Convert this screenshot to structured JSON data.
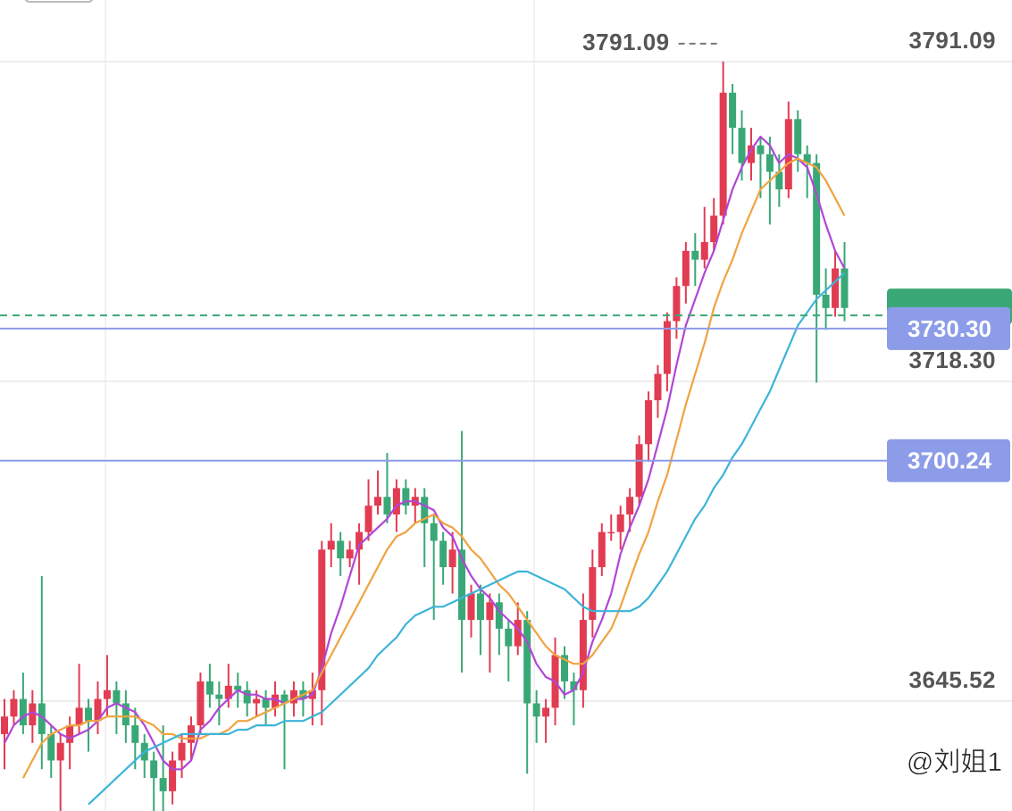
{
  "chart_data": {
    "type": "candlestick",
    "candles": {
      "up_color": "#e23c52",
      "down_color": "#3aa876",
      "values": [
        [
          3638,
          3646,
          3630,
          3642
        ],
        [
          3642,
          3648,
          3640,
          3646
        ],
        [
          3646,
          3652,
          3638,
          3640
        ],
        [
          3640,
          3648,
          3636,
          3645
        ],
        [
          3645,
          3674,
          3630,
          3638
        ],
        [
          3638,
          3640,
          3628,
          3632
        ],
        [
          3632,
          3638,
          3620,
          3636
        ],
        [
          3636,
          3642,
          3630,
          3640
        ],
        [
          3640,
          3654,
          3638,
          3644
        ],
        [
          3644,
          3646,
          3634,
          3641
        ],
        [
          3641,
          3650,
          3638,
          3646
        ],
        [
          3646,
          3656,
          3642,
          3648
        ],
        [
          3648,
          3650,
          3638,
          3645
        ],
        [
          3645,
          3648,
          3636,
          3640
        ],
        [
          3640,
          3644,
          3630,
          3636
        ],
        [
          3636,
          3638,
          3628,
          3632
        ],
        [
          3632,
          3634,
          3620,
          3628
        ],
        [
          3628,
          3640,
          3620,
          3625
        ],
        [
          3625,
          3634,
          3622,
          3632
        ],
        [
          3632,
          3638,
          3628,
          3636
        ],
        [
          3636,
          3642,
          3632,
          3640
        ],
        [
          3640,
          3652,
          3638,
          3650
        ],
        [
          3650,
          3654,
          3644,
          3647
        ],
        [
          3647,
          3650,
          3640,
          3646
        ],
        [
          3646,
          3654,
          3644,
          3649
        ],
        [
          3649,
          3652,
          3644,
          3648
        ],
        [
          3648,
          3650,
          3642,
          3645
        ],
        [
          3645,
          3648,
          3642,
          3646
        ],
        [
          3646,
          3648,
          3640,
          3644
        ],
        [
          3644,
          3650,
          3642,
          3647
        ],
        [
          3647,
          3648,
          3630,
          3645
        ],
        [
          3645,
          3650,
          3642,
          3648
        ],
        [
          3648,
          3650,
          3642,
          3646
        ],
        [
          3646,
          3652,
          3640,
          3648
        ],
        [
          3648,
          3682,
          3640,
          3680
        ],
        [
          3680,
          3686,
          3676,
          3682
        ],
        [
          3682,
          3684,
          3674,
          3678
        ],
        [
          3678,
          3682,
          3676,
          3680
        ],
        [
          3680,
          3686,
          3672,
          3684
        ],
        [
          3684,
          3696,
          3682,
          3690
        ],
        [
          3690,
          3698,
          3688,
          3692
        ],
        [
          3692,
          3702,
          3686,
          3688
        ],
        [
          3688,
          3696,
          3684,
          3694
        ],
        [
          3694,
          3696,
          3688,
          3690
        ],
        [
          3690,
          3694,
          3686,
          3692
        ],
        [
          3692,
          3694,
          3676,
          3686
        ],
        [
          3686,
          3688,
          3664,
          3682
        ],
        [
          3682,
          3684,
          3672,
          3676
        ],
        [
          3676,
          3684,
          3670,
          3680
        ],
        [
          3680,
          3707,
          3652,
          3664
        ],
        [
          3664,
          3672,
          3660,
          3670
        ],
        [
          3670,
          3672,
          3656,
          3664
        ],
        [
          3664,
          3670,
          3652,
          3668
        ],
        [
          3668,
          3670,
          3656,
          3662
        ],
        [
          3662,
          3664,
          3650,
          3658
        ],
        [
          3658,
          3668,
          3656,
          3664
        ],
        [
          3664,
          3666,
          3629,
          3645
        ],
        [
          3645,
          3648,
          3636,
          3642
        ],
        [
          3642,
          3646,
          3636,
          3644
        ],
        [
          3644,
          3660,
          3640,
          3656
        ],
        [
          3656,
          3658,
          3646,
          3650
        ],
        [
          3650,
          3652,
          3640,
          3648
        ],
        [
          3648,
          3670,
          3644,
          3664
        ],
        [
          3664,
          3680,
          3660,
          3676
        ],
        [
          3676,
          3686,
          3674,
          3684
        ],
        [
          3684,
          3688,
          3682,
          3684
        ],
        [
          3684,
          3690,
          3680,
          3688
        ],
        [
          3688,
          3694,
          3684,
          3692
        ],
        [
          3692,
          3706,
          3690,
          3704
        ],
        [
          3704,
          3716,
          3700,
          3714
        ],
        [
          3714,
          3722,
          3710,
          3720
        ],
        [
          3720,
          3734,
          3716,
          3732
        ],
        [
          3732,
          3742,
          3728,
          3740
        ],
        [
          3740,
          3750,
          3736,
          3748
        ],
        [
          3748,
          3752,
          3740,
          3746
        ],
        [
          3746,
          3758,
          3744,
          3750
        ],
        [
          3750,
          3760,
          3748,
          3756
        ],
        [
          3756,
          3791.09,
          3754,
          3784
        ],
        [
          3784,
          3786,
          3770,
          3776
        ],
        [
          3776,
          3780,
          3764,
          3768
        ],
        [
          3768,
          3776,
          3764,
          3772
        ],
        [
          3772,
          3774,
          3760,
          3770
        ],
        [
          3770,
          3774,
          3754,
          3766
        ],
        [
          3766,
          3770,
          3758,
          3762
        ],
        [
          3762,
          3782,
          3760,
          3778
        ],
        [
          3778,
          3780,
          3766,
          3770
        ],
        [
          3770,
          3772,
          3760,
          3768
        ],
        [
          3768,
          3770,
          3718,
          3738
        ],
        [
          3738,
          3744,
          3730,
          3735
        ],
        [
          3735,
          3748,
          3733,
          3744
        ],
        [
          3744,
          3750,
          3732,
          3735
        ]
      ]
    },
    "lines": [
      {
        "color": "#b146d6",
        "values": [
          3636,
          3640,
          3642,
          3643,
          3642,
          3640,
          3638,
          3637,
          3638,
          3639,
          3641,
          3644,
          3645,
          3644,
          3643,
          3640,
          3636,
          3632,
          3630,
          3630,
          3632,
          3639,
          3641,
          3644,
          3646,
          3648,
          3647,
          3647,
          3646,
          3646,
          3645,
          3646,
          3646,
          3647,
          3653,
          3661,
          3667,
          3674,
          3681,
          3683,
          3685,
          3687,
          3690,
          3691,
          3691,
          3690,
          3689,
          3685,
          3683,
          3678,
          3674,
          3671,
          3669,
          3666,
          3664,
          3662,
          3659,
          3654,
          3651,
          3650,
          3647,
          3648,
          3652,
          3659,
          3664,
          3670,
          3679,
          3685,
          3690,
          3696,
          3704,
          3712,
          3722,
          3731,
          3737,
          3743,
          3748,
          3755,
          3762,
          3767,
          3771,
          3774,
          3772,
          3768,
          3770,
          3769,
          3767,
          3761,
          3754,
          3748,
          3744
        ]
      },
      {
        "color": "#f0a340",
        "values": [
          null,
          null,
          3628,
          3632,
          3636,
          3638,
          3639,
          3640,
          3640,
          3641,
          3641,
          3642,
          3642,
          3642,
          3642,
          3641,
          3640,
          3638,
          3638,
          3637,
          3637,
          3637,
          3638,
          3638,
          3639,
          3641,
          3641,
          3642,
          3643,
          3644,
          3645,
          3646,
          3647,
          3648,
          3652,
          3656,
          3660,
          3664,
          3668,
          3672,
          3676,
          3680,
          3683,
          3684,
          3686,
          3687,
          3688,
          3686,
          3685,
          3683,
          3680,
          3678,
          3675,
          3672,
          3670,
          3667,
          3664,
          3661,
          3658,
          3656,
          3655,
          3654,
          3654,
          3656,
          3659,
          3662,
          3667,
          3673,
          3679,
          3684,
          3691,
          3697,
          3705,
          3713,
          3720,
          3727,
          3735,
          3741,
          3746,
          3752,
          3757,
          3762,
          3764,
          3766,
          3768,
          3769,
          3768,
          3767,
          3764,
          3760,
          3756
        ]
      },
      {
        "color": "#3db4d8",
        "values": [
          null,
          null,
          null,
          null,
          null,
          null,
          null,
          null,
          null,
          3622,
          3624,
          3626,
          3628,
          3630,
          3632,
          3634,
          3635,
          3636,
          3637,
          3638,
          3638,
          3638,
          3638,
          3638,
          3638,
          3639,
          3639,
          3640,
          3640,
          3640,
          3641,
          3641,
          3641,
          3642,
          3643,
          3645,
          3647,
          3649,
          3651,
          3653,
          3656,
          3658,
          3660,
          3663,
          3665,
          3666,
          3667,
          3667,
          3668,
          3669,
          3670,
          3671,
          3672,
          3673,
          3674,
          3675,
          3675,
          3674,
          3673,
          3672,
          3671,
          3669,
          3667,
          3666,
          3666,
          3666,
          3666,
          3666,
          3667,
          3669,
          3672,
          3675,
          3679,
          3683,
          3687,
          3690,
          3694,
          3697,
          3701,
          3704,
          3708,
          3712,
          3716,
          3721,
          3726,
          3731,
          3734,
          3737,
          3739,
          3741,
          3743
        ]
      }
    ],
    "ylim": [
      3620.5,
      3805.1
    ],
    "yticks": [
      3791.09,
      {
        "value": 3718.3,
        "label": "3718.30"
      },
      3645.52
    ],
    "grid": true,
    "last_price_line": {
      "value": 3733.3,
      "color": "#3aa876"
    },
    "price_lines": [
      {
        "value": {
          "value": 3730.3,
          "label": "3730.30"
        },
        "color": "#8c9ce8"
      },
      {
        "value": 3700.24,
        "color": "#8c9ce8"
      }
    ],
    "watermark": "@刘姐1"
  }
}
